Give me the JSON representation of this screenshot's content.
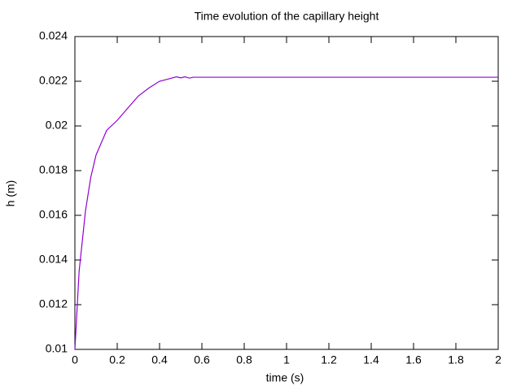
{
  "chart_data": {
    "type": "line",
    "title": "Time evolution of the capillary height",
    "xlabel": "time (s)",
    "ylabel": "h (m)",
    "x": [
      0,
      0.02,
      0.05,
      0.075,
      0.1,
      0.15,
      0.2,
      0.25,
      0.3,
      0.35,
      0.4,
      0.45,
      0.48,
      0.5,
      0.52,
      0.54,
      0.56,
      0.6,
      1,
      2
    ],
    "values": [
      0.01,
      0.0135,
      0.0162,
      0.0177,
      0.0187,
      0.0198,
      0.02025,
      0.0208,
      0.02134,
      0.0217,
      0.022,
      0.02212,
      0.0222,
      0.02215,
      0.0222,
      0.02214,
      0.02218,
      0.02218,
      0.02218,
      0.02218
    ],
    "color": "#9400d3",
    "xlim": [
      0,
      2
    ],
    "xticks": [
      0,
      0.2,
      0.4,
      0.6,
      0.8,
      1,
      1.2,
      1.4,
      1.6,
      1.8,
      2
    ],
    "ylim": [
      0.01,
      0.024
    ],
    "yticks": [
      0.01,
      0.012,
      0.014,
      0.016,
      0.018,
      0.02,
      0.022,
      0.024
    ],
    "grid": false
  }
}
